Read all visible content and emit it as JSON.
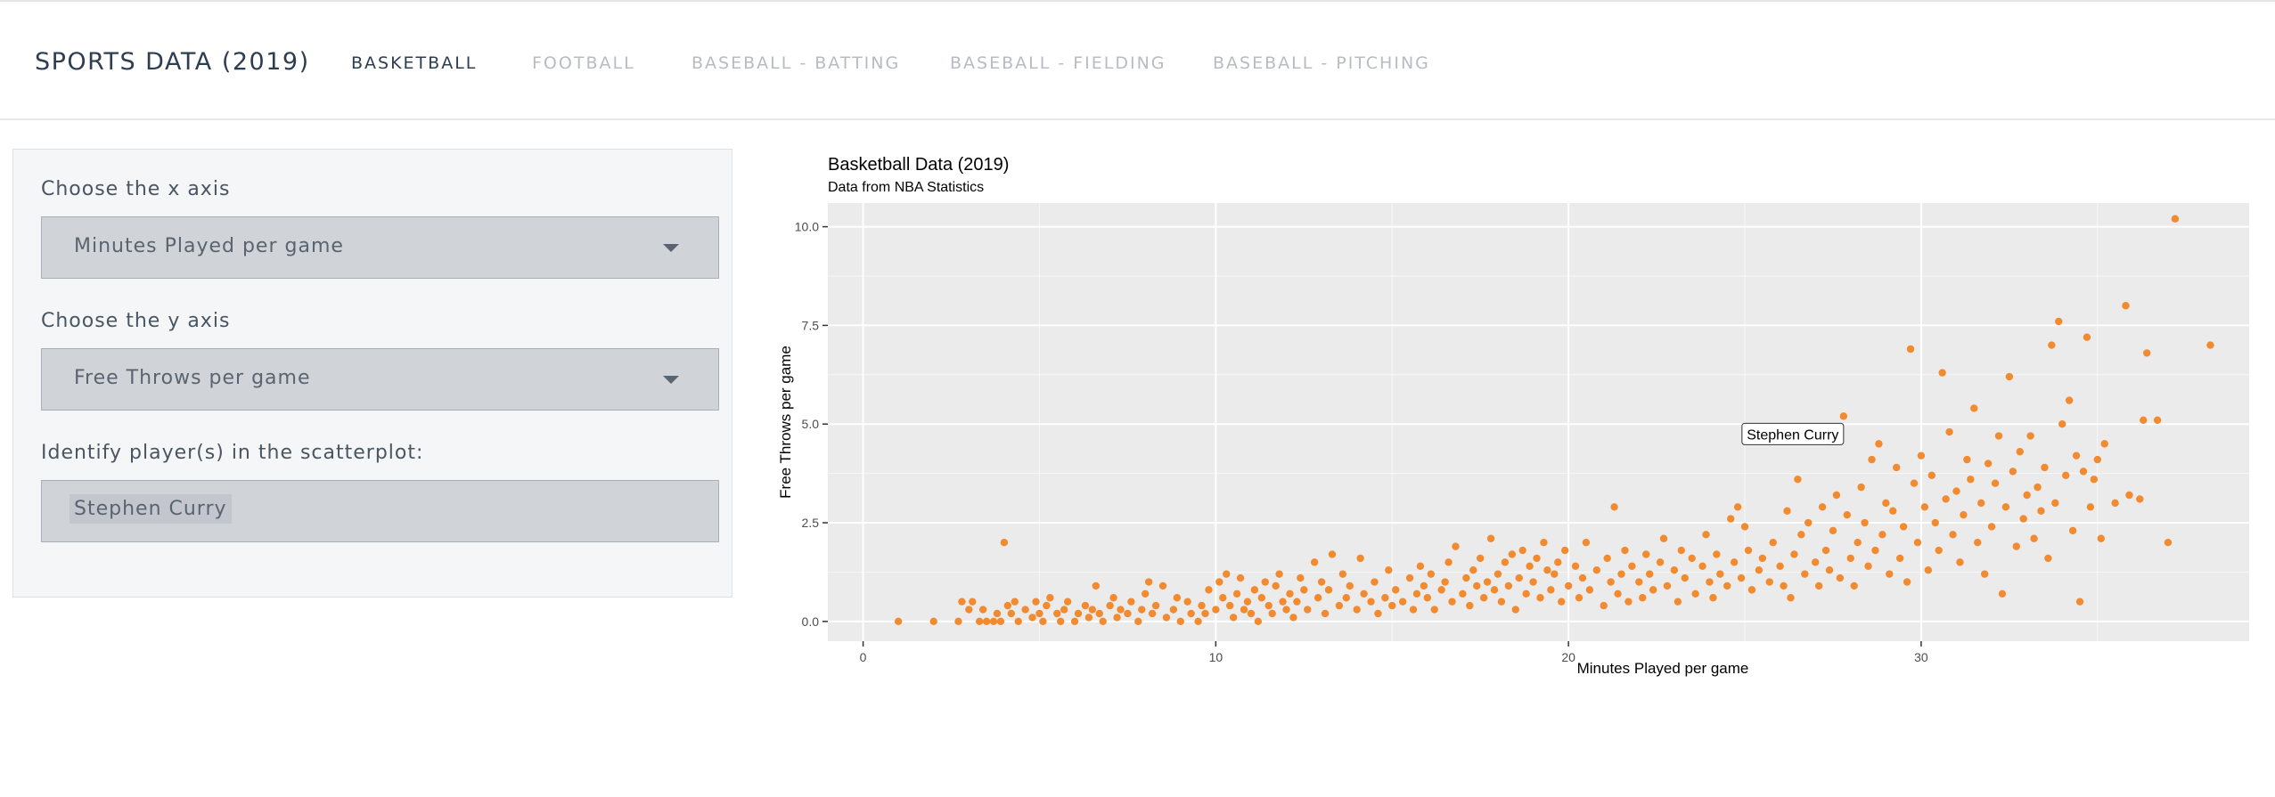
{
  "navbar": {
    "brand": "SPORTS DATA (2019)",
    "items": [
      {
        "label": "BASKETBALL",
        "active": true
      },
      {
        "label": "FOOTBALL",
        "active": false
      },
      {
        "label": "BASEBALL - BATTING",
        "active": false
      },
      {
        "label": "BASEBALL - FIELDING",
        "active": false
      },
      {
        "label": "BASEBALL - PITCHING",
        "active": false
      }
    ]
  },
  "controls": {
    "x_axis_label": "Choose the x axis",
    "x_axis_value": "Minutes Played per game",
    "y_axis_label": "Choose the y axis",
    "y_axis_value": "Free Throws per game",
    "identify_label": "Identify player(s) in the scatterplot:",
    "identify_selected": "Stephen Curry"
  },
  "colors": {
    "point": "#f28a30",
    "panel_bg": "#ebebeb",
    "grid": "#ffffff",
    "nav_active": "#2c3e50",
    "nav_inactive": "#b8bcc2"
  },
  "chart_data": {
    "type": "scatter",
    "title": "Basketball Data (2019)",
    "subtitle": "Data from NBA Statistics",
    "xlabel": "Minutes Played per game",
    "ylabel": "Free Throws per game",
    "xlim": [
      -1,
      39.3
    ],
    "ylim": [
      -0.5,
      10.6
    ],
    "x_ticks": [
      0,
      10,
      20,
      30
    ],
    "x_tick_labels": [
      "0",
      "10",
      "20",
      "30"
    ],
    "y_ticks": [
      0,
      2.5,
      5,
      7.5,
      10
    ],
    "y_tick_labels": [
      "0.0",
      "2.5",
      "5.0",
      "7.5",
      "10.0"
    ],
    "grid": true,
    "legend": "none",
    "annotation": {
      "label": "Stephen Curry",
      "x": 27.8,
      "y": 5.2
    },
    "series": [
      {
        "points": [
          [
            1.0,
            0.0
          ],
          [
            2.0,
            0.0
          ],
          [
            2.7,
            0.0
          ],
          [
            2.8,
            0.5
          ],
          [
            3.0,
            0.3
          ],
          [
            3.1,
            0.5
          ],
          [
            3.3,
            0.0
          ],
          [
            3.4,
            0.3
          ],
          [
            3.5,
            0.0
          ],
          [
            3.7,
            0.0
          ],
          [
            3.8,
            0.2
          ],
          [
            3.9,
            0.0
          ],
          [
            4.0,
            2.0
          ],
          [
            4.1,
            0.4
          ],
          [
            4.2,
            0.2
          ],
          [
            4.3,
            0.5
          ],
          [
            4.4,
            0.0
          ],
          [
            4.6,
            0.3
          ],
          [
            4.8,
            0.1
          ],
          [
            4.9,
            0.5
          ],
          [
            5.0,
            0.2
          ],
          [
            5.1,
            0.0
          ],
          [
            5.2,
            0.4
          ],
          [
            5.3,
            0.6
          ],
          [
            5.5,
            0.2
          ],
          [
            5.6,
            0.0
          ],
          [
            5.7,
            0.3
          ],
          [
            5.8,
            0.5
          ],
          [
            6.0,
            0.0
          ],
          [
            6.1,
            0.2
          ],
          [
            6.3,
            0.4
          ],
          [
            6.4,
            0.1
          ],
          [
            6.5,
            0.3
          ],
          [
            6.6,
            0.9
          ],
          [
            6.7,
            0.2
          ],
          [
            6.8,
            0.0
          ],
          [
            7.0,
            0.4
          ],
          [
            7.1,
            0.6
          ],
          [
            7.2,
            0.1
          ],
          [
            7.3,
            0.3
          ],
          [
            7.5,
            0.2
          ],
          [
            7.6,
            0.5
          ],
          [
            7.8,
            0.0
          ],
          [
            7.9,
            0.3
          ],
          [
            8.0,
            0.7
          ],
          [
            8.1,
            1.0
          ],
          [
            8.2,
            0.2
          ],
          [
            8.3,
            0.4
          ],
          [
            8.5,
            0.9
          ],
          [
            8.6,
            0.1
          ],
          [
            8.8,
            0.3
          ],
          [
            8.9,
            0.6
          ],
          [
            9.0,
            0.0
          ],
          [
            9.2,
            0.5
          ],
          [
            9.3,
            0.2
          ],
          [
            9.5,
            0.0
          ],
          [
            9.6,
            0.4
          ],
          [
            9.7,
            0.2
          ],
          [
            9.8,
            0.8
          ],
          [
            10.0,
            0.3
          ],
          [
            10.1,
            1.0
          ],
          [
            10.2,
            0.6
          ],
          [
            10.3,
            1.2
          ],
          [
            10.4,
            0.4
          ],
          [
            10.5,
            0.1
          ],
          [
            10.6,
            0.7
          ],
          [
            10.7,
            1.1
          ],
          [
            10.8,
            0.3
          ],
          [
            10.9,
            0.5
          ],
          [
            11.0,
            0.2
          ],
          [
            11.1,
            0.8
          ],
          [
            11.2,
            0.0
          ],
          [
            11.3,
            0.6
          ],
          [
            11.4,
            1.0
          ],
          [
            11.5,
            0.4
          ],
          [
            11.6,
            0.2
          ],
          [
            11.7,
            0.9
          ],
          [
            11.8,
            1.2
          ],
          [
            11.9,
            0.5
          ],
          [
            12.0,
            0.3
          ],
          [
            12.1,
            0.7
          ],
          [
            12.2,
            0.1
          ],
          [
            12.3,
            0.5
          ],
          [
            12.4,
            1.1
          ],
          [
            12.5,
            0.8
          ],
          [
            12.6,
            0.3
          ],
          [
            12.8,
            1.5
          ],
          [
            12.9,
            0.6
          ],
          [
            13.0,
            1.0
          ],
          [
            13.1,
            0.2
          ],
          [
            13.2,
            0.8
          ],
          [
            13.3,
            1.7
          ],
          [
            13.5,
            0.4
          ],
          [
            13.6,
            1.2
          ],
          [
            13.7,
            0.6
          ],
          [
            13.8,
            0.9
          ],
          [
            14.0,
            0.3
          ],
          [
            14.1,
            1.6
          ],
          [
            14.2,
            0.7
          ],
          [
            14.4,
            0.5
          ],
          [
            14.5,
            1.0
          ],
          [
            14.6,
            0.2
          ],
          [
            14.8,
            0.6
          ],
          [
            14.9,
            1.3
          ],
          [
            15.0,
            0.4
          ],
          [
            15.1,
            0.8
          ],
          [
            15.3,
            0.5
          ],
          [
            15.5,
            1.1
          ],
          [
            15.6,
            0.3
          ],
          [
            15.7,
            0.7
          ],
          [
            15.8,
            1.4
          ],
          [
            15.9,
            0.9
          ],
          [
            16.0,
            0.6
          ],
          [
            16.1,
            1.2
          ],
          [
            16.2,
            0.3
          ],
          [
            16.4,
            0.8
          ],
          [
            16.5,
            1.0
          ],
          [
            16.6,
            1.5
          ],
          [
            16.7,
            0.5
          ],
          [
            16.8,
            1.9
          ],
          [
            17.0,
            0.7
          ],
          [
            17.1,
            1.1
          ],
          [
            17.2,
            0.4
          ],
          [
            17.3,
            1.3
          ],
          [
            17.4,
            0.9
          ],
          [
            17.5,
            1.6
          ],
          [
            17.6,
            0.6
          ],
          [
            17.7,
            1.0
          ],
          [
            17.8,
            2.1
          ],
          [
            17.9,
            0.8
          ],
          [
            18.0,
            1.2
          ],
          [
            18.1,
            0.5
          ],
          [
            18.2,
            1.5
          ],
          [
            18.3,
            0.9
          ],
          [
            18.4,
            1.7
          ],
          [
            18.5,
            0.3
          ],
          [
            18.6,
            1.1
          ],
          [
            18.7,
            1.8
          ],
          [
            18.8,
            0.7
          ],
          [
            18.9,
            1.4
          ],
          [
            19.0,
            1.0
          ],
          [
            19.1,
            1.6
          ],
          [
            19.2,
            0.6
          ],
          [
            19.3,
            2.0
          ],
          [
            19.4,
            1.3
          ],
          [
            19.5,
            0.8
          ],
          [
            19.6,
            1.2
          ],
          [
            19.7,
            1.5
          ],
          [
            19.8,
            0.5
          ],
          [
            19.9,
            1.8
          ],
          [
            20.0,
            0.9
          ],
          [
            20.2,
            1.4
          ],
          [
            20.3,
            0.6
          ],
          [
            20.4,
            1.1
          ],
          [
            20.5,
            2.0
          ],
          [
            20.6,
            0.8
          ],
          [
            20.8,
            1.3
          ],
          [
            21.0,
            0.4
          ],
          [
            21.1,
            1.6
          ],
          [
            21.2,
            1.0
          ],
          [
            21.3,
            2.9
          ],
          [
            21.4,
            0.7
          ],
          [
            21.5,
            1.2
          ],
          [
            21.6,
            1.8
          ],
          [
            21.7,
            0.5
          ],
          [
            21.8,
            1.4
          ],
          [
            22.0,
            1.0
          ],
          [
            22.1,
            0.6
          ],
          [
            22.2,
            1.7
          ],
          [
            22.3,
            1.2
          ],
          [
            22.4,
            0.8
          ],
          [
            22.6,
            1.5
          ],
          [
            22.7,
            2.1
          ],
          [
            22.8,
            0.9
          ],
          [
            23.0,
            1.3
          ],
          [
            23.1,
            0.5
          ],
          [
            23.2,
            1.8
          ],
          [
            23.3,
            1.1
          ],
          [
            23.5,
            1.6
          ],
          [
            23.6,
            0.7
          ],
          [
            23.8,
            1.4
          ],
          [
            23.9,
            2.2
          ],
          [
            24.0,
            1.0
          ],
          [
            24.1,
            0.6
          ],
          [
            24.2,
            1.7
          ],
          [
            24.3,
            1.2
          ],
          [
            24.5,
            0.9
          ],
          [
            24.6,
            2.6
          ],
          [
            24.7,
            1.5
          ],
          [
            24.8,
            2.9
          ],
          [
            24.9,
            1.1
          ],
          [
            25.0,
            2.4
          ],
          [
            25.1,
            1.8
          ],
          [
            25.2,
            0.8
          ],
          [
            25.4,
            1.3
          ],
          [
            25.5,
            1.6
          ],
          [
            25.7,
            1.0
          ],
          [
            25.8,
            2.0
          ],
          [
            26.0,
            1.4
          ],
          [
            26.1,
            0.9
          ],
          [
            26.2,
            2.8
          ],
          [
            26.3,
            0.6
          ],
          [
            26.4,
            1.7
          ],
          [
            26.5,
            3.6
          ],
          [
            26.6,
            2.2
          ],
          [
            26.7,
            1.2
          ],
          [
            26.8,
            2.5
          ],
          [
            27.0,
            1.5
          ],
          [
            27.1,
            0.9
          ],
          [
            27.2,
            2.9
          ],
          [
            27.3,
            1.8
          ],
          [
            27.4,
            1.3
          ],
          [
            27.5,
            2.3
          ],
          [
            27.6,
            3.2
          ],
          [
            27.7,
            1.1
          ],
          [
            27.8,
            5.2
          ],
          [
            27.9,
            2.7
          ],
          [
            28.0,
            1.6
          ],
          [
            28.1,
            0.9
          ],
          [
            28.2,
            2.0
          ],
          [
            28.3,
            3.4
          ],
          [
            28.4,
            2.5
          ],
          [
            28.5,
            1.4
          ],
          [
            28.6,
            4.1
          ],
          [
            28.7,
            1.8
          ],
          [
            28.8,
            4.5
          ],
          [
            28.9,
            2.2
          ],
          [
            29.0,
            3.0
          ],
          [
            29.1,
            1.2
          ],
          [
            29.2,
            2.8
          ],
          [
            29.3,
            3.9
          ],
          [
            29.4,
            1.6
          ],
          [
            29.5,
            2.4
          ],
          [
            29.6,
            1.0
          ],
          [
            29.7,
            6.9
          ],
          [
            29.8,
            3.5
          ],
          [
            29.9,
            2.0
          ],
          [
            30.0,
            4.2
          ],
          [
            30.1,
            2.9
          ],
          [
            30.2,
            1.3
          ],
          [
            30.3,
            3.7
          ],
          [
            30.4,
            2.5
          ],
          [
            30.5,
            1.8
          ],
          [
            30.6,
            6.3
          ],
          [
            30.7,
            3.1
          ],
          [
            30.8,
            4.8
          ],
          [
            30.9,
            2.2
          ],
          [
            31.0,
            3.3
          ],
          [
            31.1,
            1.5
          ],
          [
            31.2,
            2.7
          ],
          [
            31.3,
            4.1
          ],
          [
            31.4,
            3.6
          ],
          [
            31.5,
            5.4
          ],
          [
            31.6,
            2.0
          ],
          [
            31.7,
            3.0
          ],
          [
            31.8,
            1.2
          ],
          [
            31.9,
            4.0
          ],
          [
            32.0,
            2.4
          ],
          [
            32.1,
            3.5
          ],
          [
            32.2,
            4.7
          ],
          [
            32.3,
            0.7
          ],
          [
            32.4,
            2.9
          ],
          [
            32.5,
            6.2
          ],
          [
            32.6,
            3.8
          ],
          [
            32.7,
            1.9
          ],
          [
            32.8,
            4.3
          ],
          [
            32.9,
            2.6
          ],
          [
            33.0,
            3.2
          ],
          [
            33.1,
            4.7
          ],
          [
            33.2,
            2.1
          ],
          [
            33.3,
            3.4
          ],
          [
            33.4,
            2.8
          ],
          [
            33.5,
            3.9
          ],
          [
            33.6,
            1.6
          ],
          [
            33.7,
            7.0
          ],
          [
            33.8,
            3.0
          ],
          [
            33.9,
            7.6
          ],
          [
            34.0,
            5.0
          ],
          [
            34.1,
            3.7
          ],
          [
            34.2,
            5.6
          ],
          [
            34.3,
            2.3
          ],
          [
            34.4,
            4.2
          ],
          [
            34.5,
            0.5
          ],
          [
            34.6,
            3.8
          ],
          [
            34.7,
            7.2
          ],
          [
            34.8,
            2.9
          ],
          [
            34.9,
            3.6
          ],
          [
            35.0,
            4.1
          ],
          [
            35.1,
            2.1
          ],
          [
            35.2,
            4.5
          ],
          [
            35.5,
            3.0
          ],
          [
            35.8,
            8.0
          ],
          [
            35.9,
            3.2
          ],
          [
            36.2,
            3.1
          ],
          [
            36.3,
            5.1
          ],
          [
            36.4,
            6.8
          ],
          [
            36.7,
            5.1
          ],
          [
            37.0,
            2.0
          ],
          [
            37.2,
            10.2
          ],
          [
            38.2,
            7.0
          ]
        ]
      }
    ]
  }
}
